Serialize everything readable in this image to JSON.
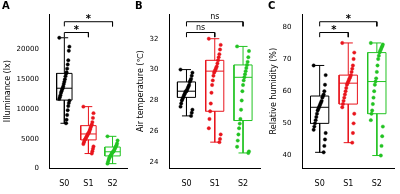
{
  "chart_data": [
    {
      "type": "box",
      "title": "A",
      "y_label": "Illuminance (lx)",
      "categories": [
        "S0",
        "S1",
        "S2"
      ],
      "ylim": [
        0,
        26000
      ],
      "yticks": [
        0,
        5000,
        10000,
        15000,
        20000
      ],
      "groups": [
        {
          "name": "S0",
          "color": "#000000",
          "whisker_low": 7600,
          "q1": 11500,
          "median": 13500,
          "q3": 16000,
          "whisker_high": 22000,
          "values": [
            22000,
            20500,
            19800,
            18200,
            17500,
            16800,
            16200,
            15900,
            15500,
            15000,
            14600,
            14200,
            13800,
            13500,
            13300,
            13000,
            12700,
            12300,
            12000,
            11700,
            11400,
            11000,
            10500,
            9800,
            9000,
            8200,
            7600
          ]
        },
        {
          "name": "S1",
          "color": "#e8141c",
          "whisker_low": 2500,
          "q1": 4800,
          "median": 5800,
          "q3": 7200,
          "whisker_high": 10400,
          "values": [
            10400,
            9300,
            8500,
            7800,
            7400,
            7200,
            6900,
            6600,
            6300,
            6100,
            5900,
            5800,
            5600,
            5400,
            5200,
            5000,
            4900,
            4700,
            4400,
            4100,
            3700,
            3300,
            2900,
            2500
          ]
        },
        {
          "name": "S2",
          "color": "#22c322",
          "whisker_low": 800,
          "q1": 2100,
          "median": 2800,
          "q3": 3600,
          "whisker_high": 5400,
          "values": [
            5400,
            4700,
            4200,
            3900,
            3700,
            3500,
            3300,
            3100,
            2900,
            2800,
            2700,
            2600,
            2400,
            2200,
            2100,
            1900,
            1700,
            1400,
            1100,
            800
          ]
        }
      ],
      "comparisons": [
        {
          "from": "S0",
          "to": "S1",
          "label": "*"
        },
        {
          "from": "S0",
          "to": "S2",
          "label": "*"
        }
      ]
    },
    {
      "type": "box",
      "title": "B",
      "y_label": "Air temperature (℃)",
      "categories": [
        "S0",
        "S1",
        "S2"
      ],
      "ylim": [
        23.6,
        33.6
      ],
      "yticks": [
        24,
        26,
        28,
        30,
        32
      ],
      "groups": [
        {
          "name": "S0",
          "color": "#000000",
          "whisker_low": 27.0,
          "q1": 28.2,
          "median": 28.6,
          "q3": 29.2,
          "whisker_high": 30.0,
          "values": [
            30.0,
            29.8,
            29.6,
            29.4,
            29.3,
            29.2,
            29.0,
            28.9,
            28.8,
            28.7,
            28.6,
            28.6,
            28.5,
            28.4,
            28.3,
            28.2,
            28.1,
            28.0,
            27.8,
            27.6,
            27.4,
            27.2,
            27.0
          ]
        },
        {
          "name": "S1",
          "color": "#e8141c",
          "whisker_low": 25.3,
          "q1": 27.3,
          "median": 29.9,
          "q3": 30.6,
          "whisker_high": 32.0,
          "values": [
            32.0,
            31.6,
            31.3,
            31.0,
            30.8,
            30.6,
            30.4,
            30.2,
            30.1,
            30.0,
            29.9,
            29.8,
            29.6,
            29.3,
            29.0,
            28.5,
            27.8,
            27.3,
            26.8,
            26.2,
            25.8,
            25.5,
            25.3
          ]
        },
        {
          "name": "S2",
          "color": "#22c322",
          "whisker_low": 24.6,
          "q1": 26.7,
          "median": 29.5,
          "q3": 30.3,
          "whisker_high": 31.5,
          "values": [
            31.5,
            31.2,
            30.8,
            30.5,
            30.3,
            30.1,
            29.9,
            29.7,
            29.5,
            29.3,
            29.0,
            28.6,
            28.0,
            27.4,
            26.8,
            26.5,
            26.2,
            25.8,
            25.4,
            25.0,
            24.7,
            24.6
          ]
        }
      ],
      "comparisons": [
        {
          "from": "S0",
          "to": "S1",
          "label": "ns"
        },
        {
          "from": "S0",
          "to": "S2",
          "label": "ns"
        }
      ]
    },
    {
      "type": "box",
      "title": "C",
      "y_label": "Relative humidity (%)",
      "categories": [
        "S0",
        "S1",
        "S2"
      ],
      "ylim": [
        36,
        84
      ],
      "yticks": [
        40,
        50,
        60,
        70,
        80
      ],
      "groups": [
        {
          "name": "S0",
          "color": "#000000",
          "whisker_low": 41,
          "q1": 50,
          "median": 55,
          "q3": 58.5,
          "whisker_high": 68,
          "values": [
            68,
            65,
            62,
            60,
            59,
            58.5,
            58,
            57,
            56.5,
            56,
            55.5,
            55,
            54.5,
            54,
            53,
            52,
            51,
            50,
            49,
            48,
            47,
            45,
            43,
            41
          ]
        },
        {
          "name": "S1",
          "color": "#e8141c",
          "whisker_low": 44,
          "q1": 56,
          "median": 62.5,
          "q3": 65,
          "whisker_high": 75,
          "values": [
            75,
            72,
            70,
            68,
            67,
            66,
            65,
            64.5,
            64,
            63.5,
            63,
            62.5,
            62,
            61,
            60,
            59,
            58,
            57,
            56,
            55,
            53,
            50,
            47,
            44
          ]
        },
        {
          "name": "S2",
          "color": "#22c322",
          "whisker_low": 40,
          "q1": 53,
          "median": 63,
          "q3": 72,
          "whisker_high": 75,
          "values": [
            75,
            74.5,
            74,
            73.5,
            73,
            72.5,
            72,
            71,
            70,
            68,
            66,
            64,
            63,
            62,
            60,
            58,
            56,
            54,
            53,
            51,
            49,
            46,
            43,
            40
          ]
        }
      ],
      "comparisons": [
        {
          "from": "S0",
          "to": "S1",
          "label": "*"
        },
        {
          "from": "S0",
          "to": "S2",
          "label": "*"
        }
      ]
    }
  ]
}
